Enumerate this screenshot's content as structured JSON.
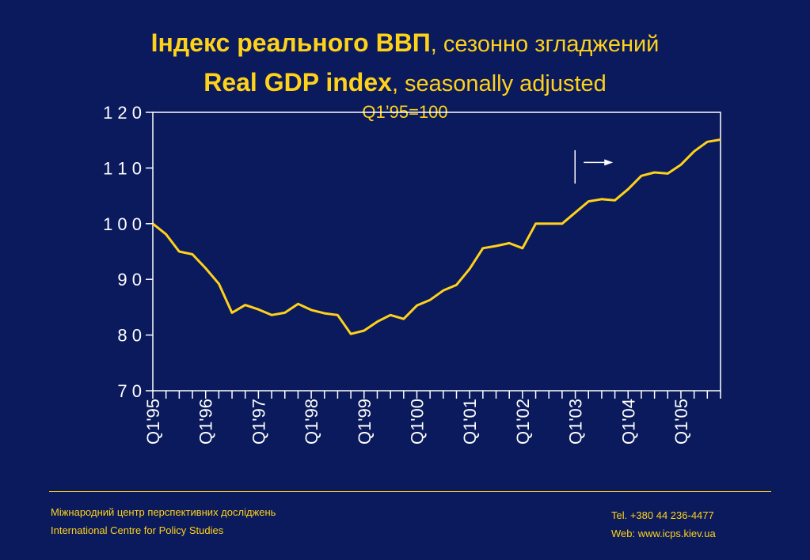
{
  "title": {
    "ua_bold": "Індекс реального ВВП",
    "ua_light": ", сезонно згладжений",
    "en_bold": "Real GDP index",
    "en_light": ", seasonally adjusted",
    "base": "Q1’95=100"
  },
  "footer": {
    "org_ua": "Міжнародний центр перспективних досліджень",
    "org_en": "International Centre for Policy Studies",
    "tel": "Tel. +380 44 236-4477",
    "web": "Web: www.icps.kiev.ua"
  },
  "colors": {
    "background": "#0a1a5c",
    "line": "#ffd21a",
    "axis": "#ffffff",
    "title": "#ffd21a"
  },
  "chart_data": {
    "type": "line",
    "ylim": [
      70,
      120
    ],
    "yticks": [
      70,
      80,
      90,
      100,
      110,
      120
    ],
    "ytick_labels": [
      "7 0",
      "8 0",
      "9 0",
      "1 0 0",
      "1 1 0",
      "1 2 0"
    ],
    "x_tick_labels": [
      "Q1'95",
      "Q1'96",
      "Q1'97",
      "Q1'98",
      "Q1'99",
      "Q1'00",
      "Q1'01",
      "Q1'02",
      "Q1'03",
      "Q1'04",
      "Q1'05"
    ],
    "quarters_total": 44,
    "series": [
      {
        "values": [
          100.0,
          98.1,
          95.0,
          94.5,
          92.0,
          89.2,
          84.0,
          85.4,
          84.6,
          83.6,
          84.0,
          85.6,
          84.5,
          83.9,
          83.6,
          80.2,
          80.8,
          82.4,
          83.6,
          82.9,
          85.3,
          86.3,
          88.0,
          89.0,
          91.9,
          95.6,
          96.0,
          96.5,
          95.6,
          100.0,
          100.0,
          100.0,
          102.0,
          104.0,
          104.4,
          104.2,
          106.2,
          108.6,
          109.2,
          109.0,
          110.6,
          113.0,
          114.7,
          115.1
        ]
      }
    ],
    "annotation": {
      "type": "arrow",
      "x_index": 33,
      "y_range": [
        107.2,
        113.2
      ],
      "arrow_y": 111.0,
      "direction": "right"
    },
    "grid": false
  }
}
